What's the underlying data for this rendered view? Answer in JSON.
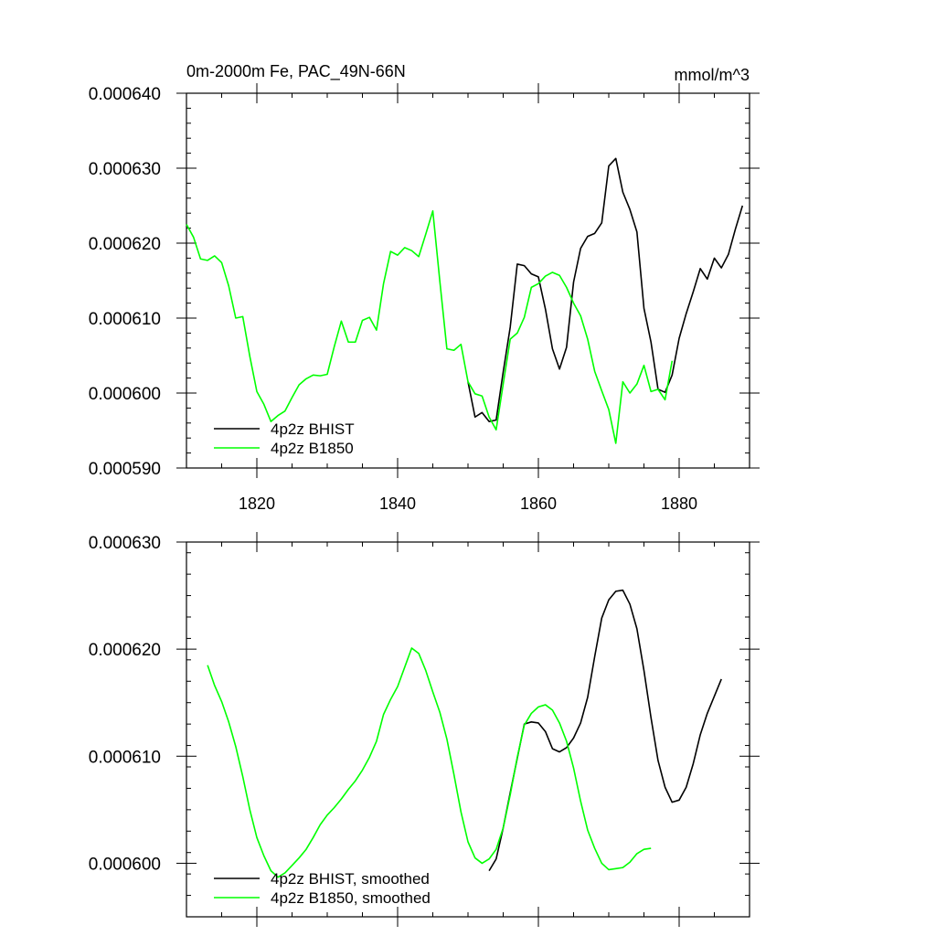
{
  "colors": {
    "bhist": "#000000",
    "b1850": "#00ff00",
    "frame": "#000000"
  },
  "chart_data": [
    {
      "type": "line",
      "title": "0m-2000m Fe, PAC_49N-66N",
      "units": "mmol/m^3",
      "xlim": [
        1810,
        1890
      ],
      "ylim": [
        0.00059,
        0.00064
      ],
      "xticks": [
        1820,
        1840,
        1860,
        1880
      ],
      "xtick_labels": [
        "1820",
        "1840",
        "1860",
        "1880"
      ],
      "yticks": [
        0.00059,
        0.0006,
        0.00061,
        0.00062,
        0.00063,
        0.00064
      ],
      "ytick_labels": [
        "0.000590",
        "0.000600",
        "0.000610",
        "0.000620",
        "0.000630",
        "0.000640"
      ],
      "legend": {
        "position": "bottom-left",
        "entries": [
          "4p2z BHIST",
          "4p2z B1850"
        ]
      },
      "series": [
        {
          "name": "4p2z BHIST",
          "color": "#000000",
          "x": [
            1850,
            1851,
            1852,
            1853,
            1854,
            1855,
            1856,
            1857,
            1858,
            1859,
            1860,
            1861,
            1862,
            1863,
            1864,
            1865,
            1866,
            1867,
            1868,
            1869,
            1870,
            1871,
            1872,
            1873,
            1874,
            1875,
            1876,
            1877,
            1878,
            1879,
            1880,
            1881,
            1882,
            1883,
            1884,
            1885,
            1886,
            1887,
            1888,
            1889
          ],
          "y": [
            0.0006015,
            0.0005968,
            0.0005974,
            0.0005962,
            0.0005964,
            0.0006028,
            0.0006088,
            0.0006172,
            0.000617,
            0.0006159,
            0.0006155,
            0.0006112,
            0.0006059,
            0.0006032,
            0.0006061,
            0.0006148,
            0.0006193,
            0.0006209,
            0.0006213,
            0.0006227,
            0.0006303,
            0.0006313,
            0.0006268,
            0.0006245,
            0.0006215,
            0.0006113,
            0.0006068,
            0.0006005,
            0.0006001,
            0.0006024,
            0.0006073,
            0.0006106,
            0.0006135,
            0.0006166,
            0.0006152,
            0.000618,
            0.0006167,
            0.0006185,
            0.0006219,
            0.000625
          ]
        },
        {
          "name": "4p2z B1850",
          "color": "#00ff00",
          "x": [
            1810,
            1811,
            1812,
            1813,
            1814,
            1815,
            1816,
            1817,
            1818,
            1819,
            1820,
            1821,
            1822,
            1823,
            1824,
            1825,
            1826,
            1827,
            1828,
            1829,
            1830,
            1831,
            1832,
            1833,
            1834,
            1835,
            1836,
            1837,
            1838,
            1839,
            1840,
            1841,
            1842,
            1843,
            1844,
            1845,
            1846,
            1847,
            1848,
            1849,
            1850,
            1851,
            1852,
            1853,
            1854,
            1855,
            1856,
            1857,
            1858,
            1859,
            1860,
            1861,
            1862,
            1863,
            1864,
            1865,
            1866,
            1867,
            1868,
            1869,
            1870,
            1871,
            1872,
            1873,
            1874,
            1875,
            1876,
            1877,
            1878,
            1879
          ],
          "y": [
            0.0006225,
            0.0006208,
            0.0006179,
            0.0006177,
            0.0006183,
            0.0006174,
            0.0006143,
            0.00061,
            0.0006102,
            0.0006049,
            0.0006002,
            0.0005985,
            0.0005962,
            0.000597,
            0.0005976,
            0.0005994,
            0.0006011,
            0.0006019,
            0.0006024,
            0.0006023,
            0.0006025,
            0.0006062,
            0.0006096,
            0.0006068,
            0.0006068,
            0.0006097,
            0.0006101,
            0.0006084,
            0.0006146,
            0.0006189,
            0.0006184,
            0.0006194,
            0.000619,
            0.0006182,
            0.0006212,
            0.0006243,
            0.0006149,
            0.0006059,
            0.0006057,
            0.0006065,
            0.0006015,
            0.0005999,
            0.0005996,
            0.0005968,
            0.0005951,
            0.0006012,
            0.0006072,
            0.000608,
            0.0006101,
            0.0006141,
            0.0006146,
            0.0006156,
            0.0006161,
            0.0006157,
            0.0006141,
            0.000612,
            0.0006103,
            0.0006072,
            0.0006029,
            0.0006003,
            0.0005978,
            0.0005933,
            0.0006015,
            0.0006,
            0.0006012,
            0.0006037,
            0.0006002,
            0.0006005,
            0.0005991,
            0.0006043
          ]
        }
      ]
    },
    {
      "type": "line",
      "title": "",
      "xlim": [
        1810,
        1890
      ],
      "ylim": [
        0.000595,
        0.00063
      ],
      "xticks": [
        1820,
        1840,
        1860,
        1880
      ],
      "xtick_labels": [],
      "yticks": [
        0.0006,
        0.00061,
        0.00062,
        0.00063
      ],
      "ytick_labels": [
        "0.000600",
        "0.000610",
        "0.000620",
        "0.000630"
      ],
      "legend": {
        "position": "bottom-left",
        "entries": [
          "4p2z BHIST, smoothed",
          "4p2z B1850, smoothed"
        ]
      },
      "series": [
        {
          "name": "4p2z BHIST, smoothed",
          "color": "#000000",
          "x": [
            1853,
            1854,
            1855,
            1856,
            1857,
            1858,
            1859,
            1860,
            1861,
            1862,
            1863,
            1864,
            1865,
            1866,
            1867,
            1868,
            1869,
            1870,
            1871,
            1872,
            1873,
            1874,
            1875,
            1876,
            1877,
            1878,
            1879,
            1880,
            1881,
            1882,
            1883,
            1884,
            1885,
            1886
          ],
          "y": [
            0.0005993,
            0.0006004,
            0.0006033,
            0.0006066,
            0.0006098,
            0.000613,
            0.0006132,
            0.0006131,
            0.0006123,
            0.0006107,
            0.0006104,
            0.0006108,
            0.0006117,
            0.0006131,
            0.0006155,
            0.0006193,
            0.0006229,
            0.0006246,
            0.0006254,
            0.0006255,
            0.0006242,
            0.0006219,
            0.000618,
            0.0006136,
            0.0006096,
            0.0006071,
            0.0006057,
            0.0006059,
            0.0006071,
            0.0006093,
            0.000612,
            0.000614,
            0.0006156,
            0.0006172
          ]
        },
        {
          "name": "4p2z B1850, smoothed",
          "color": "#00ff00",
          "x": [
            1813,
            1814,
            1815,
            1816,
            1817,
            1818,
            1819,
            1820,
            1821,
            1822,
            1823,
            1824,
            1825,
            1826,
            1827,
            1828,
            1829,
            1830,
            1831,
            1832,
            1833,
            1834,
            1835,
            1836,
            1837,
            1838,
            1839,
            1840,
            1841,
            1842,
            1843,
            1844,
            1845,
            1846,
            1847,
            1848,
            1849,
            1850,
            1851,
            1852,
            1853,
            1854,
            1855,
            1856,
            1857,
            1858,
            1859,
            1860,
            1861,
            1862,
            1863,
            1864,
            1865,
            1866,
            1867,
            1868,
            1869,
            1870,
            1871,
            1872,
            1873,
            1874,
            1875,
            1876
          ],
          "y": [
            0.0006185,
            0.0006166,
            0.0006151,
            0.0006132,
            0.0006109,
            0.0006081,
            0.000605,
            0.0006024,
            0.0006007,
            0.0005993,
            0.0005987,
            0.0005991,
            0.0005998,
            0.0006005,
            0.0006013,
            0.0006024,
            0.0006036,
            0.0006045,
            0.0006052,
            0.000606,
            0.0006069,
            0.0006077,
            0.0006087,
            0.0006099,
            0.0006114,
            0.0006139,
            0.0006153,
            0.0006165,
            0.0006183,
            0.0006201,
            0.0006196,
            0.000618,
            0.000616,
            0.0006141,
            0.0006116,
            0.0006083,
            0.0006048,
            0.000602,
            0.0006005,
            0.0006,
            0.0006004,
            0.0006013,
            0.0006033,
            0.0006064,
            0.0006099,
            0.0006129,
            0.000614,
            0.0006146,
            0.0006148,
            0.0006143,
            0.0006131,
            0.0006114,
            0.0006089,
            0.0006058,
            0.0006031,
            0.0006014,
            0.0006,
            0.0005994,
            0.0005995,
            0.0005996,
            0.0006001,
            0.0006009,
            0.0006013,
            0.0006014
          ]
        }
      ]
    }
  ]
}
